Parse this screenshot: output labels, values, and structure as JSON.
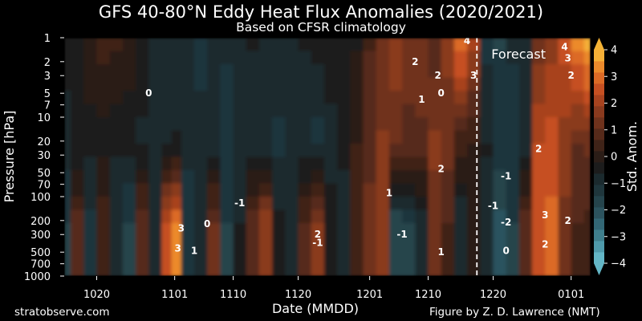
{
  "title": "GFS 40-80°N Eddy Heat Flux Anomalies (2020/2021)",
  "subtitle": "Based on CFSR climatology",
  "credit_left": "stratobserve.com",
  "credit_right": "Figure by Z. D. Lawrence (NMT)",
  "chart_data": {
    "type": "heatmap",
    "title": "GFS 40-80°N Eddy Heat Flux Anomalies (2020/2021)",
    "subtitle": "Based on CFSR climatology",
    "xlabel": "Date (MMDD)",
    "ylabel": "Pressure [hPa]",
    "x_ticks": [
      "1020",
      "1101",
      "1110",
      "1120",
      "1201",
      "1210",
      "1220",
      "0101"
    ],
    "x_tick_days": [
      0,
      12,
      21,
      31,
      42,
      51,
      61,
      73
    ],
    "x_range_days": [
      -5,
      76
    ],
    "y_ticks": [
      1,
      2,
      3,
      5,
      7,
      10,
      20,
      30,
      50,
      70,
      100,
      200,
      300,
      500,
      700,
      1000
    ],
    "y_range": [
      1,
      1000
    ],
    "y_scale": "log",
    "y_inverted": true,
    "forecast_label": "Forecast",
    "forecast_start_day": 58.5,
    "colorbar": {
      "label": "Std. Anom.",
      "ticks": [
        4,
        3,
        2,
        1,
        0,
        -1,
        -2,
        -3,
        -4
      ],
      "range": [
        -4,
        4
      ],
      "extend": "both",
      "colors": [
        "#63b6c6",
        "#4f9aab",
        "#3f7f8d",
        "#336775",
        "#2c535e",
        "#25444c",
        "#1f363c",
        "#1b2a2e",
        "#1c1c1c",
        "#2b1d17",
        "#3f2318",
        "#562a1a",
        "#6f321c",
        "#8a3a1e",
        "#a8431f",
        "#c65022",
        "#dc6a26",
        "#ec8a2c",
        "#f6b037"
      ]
    },
    "columns": [
      {
        "day": -5,
        "upper": -0.5,
        "mid": -0.8,
        "low": -1.5
      },
      {
        "day": -3,
        "upper": -0.3,
        "mid": -0.6,
        "low": 0.8
      },
      {
        "day": -1,
        "upper": 0.2,
        "mid": -0.5,
        "low": -1.2
      },
      {
        "day": 1,
        "upper": 0.4,
        "mid": -0.4,
        "low": 0.5
      },
      {
        "day": 3,
        "upper": 0.3,
        "mid": -0.6,
        "low": -0.8
      },
      {
        "day": 5,
        "upper": 0.1,
        "mid": -0.5,
        "low": -1.5
      },
      {
        "day": 7,
        "upper": -0.4,
        "mid": -0.7,
        "low": 1.0
      },
      {
        "day": 9,
        "upper": -0.8,
        "mid": -0.8,
        "low": -1.0
      },
      {
        "day": 11,
        "upper": -0.9,
        "mid": -0.7,
        "low": 2.5
      },
      {
        "day": 12,
        "upper": -0.8,
        "mid": -0.6,
        "low": 3.2
      },
      {
        "day": 14,
        "upper": -1.0,
        "mid": -0.9,
        "low": -1.3
      },
      {
        "day": 16,
        "upper": -1.1,
        "mid": -1.0,
        "low": -0.8
      },
      {
        "day": 18,
        "upper": -0.9,
        "mid": -1.0,
        "low": 1.2
      },
      {
        "day": 20,
        "upper": -1.0,
        "mid": -1.2,
        "low": -1.5
      },
      {
        "day": 22,
        "upper": -0.7,
        "mid": -1.0,
        "low": -0.6
      },
      {
        "day": 24,
        "upper": -0.6,
        "mid": -0.9,
        "low": 0.9
      },
      {
        "day": 26,
        "upper": -0.8,
        "mid": -1.0,
        "low": 1.8
      },
      {
        "day": 28,
        "upper": -0.9,
        "mid": -1.1,
        "low": -0.5
      },
      {
        "day": 30,
        "upper": -0.7,
        "mid": -0.9,
        "low": -1.0
      },
      {
        "day": 32,
        "upper": -0.6,
        "mid": -1.0,
        "low": 0.7
      },
      {
        "day": 34,
        "upper": -0.5,
        "mid": -1.2,
        "low": 1.6
      },
      {
        "day": 36,
        "upper": -0.3,
        "mid": -0.8,
        "low": -0.5
      },
      {
        "day": 38,
        "upper": -0.2,
        "mid": -0.5,
        "low": -0.9
      },
      {
        "day": 40,
        "upper": -0.3,
        "mid": 0.2,
        "low": 0.4
      },
      {
        "day": 42,
        "upper": 0.6,
        "mid": 0.9,
        "low": 1.2
      },
      {
        "day": 44,
        "upper": 1.3,
        "mid": 1.5,
        "low": 1.6
      },
      {
        "day": 46,
        "upper": 1.8,
        "mid": 1.2,
        "low": -1.8
      },
      {
        "day": 48,
        "upper": 1.5,
        "mid": 0.8,
        "low": -1.5
      },
      {
        "day": 50,
        "upper": 1.2,
        "mid": 1.0,
        "low": -1.0
      },
      {
        "day": 52,
        "upper": 0.8,
        "mid": 1.6,
        "low": 1.2
      },
      {
        "day": 54,
        "upper": 1.6,
        "mid": 1.2,
        "low": 0.6
      },
      {
        "day": 56,
        "upper": 3.2,
        "mid": 0.4,
        "low": -1.0
      },
      {
        "day": 58,
        "upper": 2.2,
        "mid": 0.1,
        "low": 0.2
      },
      {
        "day": 60,
        "upper": -1.2,
        "mid": -0.6,
        "low": -1.0
      },
      {
        "day": 62,
        "upper": -1.5,
        "mid": -1.3,
        "low": -2.0
      },
      {
        "day": 64,
        "upper": -1.0,
        "mid": -1.2,
        "low": -1.5
      },
      {
        "day": 66,
        "upper": -0.7,
        "mid": -0.8,
        "low": 0.8
      },
      {
        "day": 68,
        "upper": 1.2,
        "mid": 2.4,
        "low": 2.6
      },
      {
        "day": 70,
        "upper": 1.6,
        "mid": 2.6,
        "low": 2.8
      },
      {
        "day": 72,
        "upper": 2.6,
        "mid": 1.6,
        "low": 1.4
      },
      {
        "day": 74,
        "upper": 3.5,
        "mid": 1.0,
        "low": 0.6
      },
      {
        "day": 76,
        "upper": 4.0,
        "mid": 1.2,
        "low": 0.5
      }
    ],
    "contour_labels": [
      {
        "text": "0",
        "day": 8,
        "p": 5
      },
      {
        "text": "-1",
        "day": 22,
        "p": 120
      },
      {
        "text": "3",
        "day": 13,
        "p": 250
      },
      {
        "text": "3",
        "day": 12.5,
        "p": 450
      },
      {
        "text": "0",
        "day": 17,
        "p": 220
      },
      {
        "text": "1",
        "day": 15,
        "p": 480
      },
      {
        "text": "-1",
        "day": 34,
        "p": 380
      },
      {
        "text": "2",
        "day": 34,
        "p": 300
      },
      {
        "text": "2",
        "day": 49,
        "p": 2
      },
      {
        "text": "2",
        "day": 52.5,
        "p": 3
      },
      {
        "text": "1",
        "day": 50,
        "p": 6
      },
      {
        "text": "0",
        "day": 53,
        "p": 5
      },
      {
        "text": "4",
        "day": 57,
        "p": 1.1
      },
      {
        "text": "3",
        "day": 58,
        "p": 3
      },
      {
        "text": "2",
        "day": 53,
        "p": 45
      },
      {
        "text": "1",
        "day": 45,
        "p": 90
      },
      {
        "text": "-1",
        "day": 63,
        "p": 55
      },
      {
        "text": "-2",
        "day": 63,
        "p": 210
      },
      {
        "text": "-1",
        "day": 61,
        "p": 130
      },
      {
        "text": "2",
        "day": 68,
        "p": 25
      },
      {
        "text": "3",
        "day": 69,
        "p": 170
      },
      {
        "text": "2",
        "day": 72.5,
        "p": 200
      },
      {
        "text": "2",
        "day": 69,
        "p": 400
      },
      {
        "text": "4",
        "day": 72,
        "p": 1.3
      },
      {
        "text": "3",
        "day": 72.5,
        "p": 1.8
      },
      {
        "text": "2",
        "day": 73,
        "p": 3
      },
      {
        "text": "0",
        "day": 63,
        "p": 480
      },
      {
        "text": "-1",
        "day": 47,
        "p": 300
      },
      {
        "text": "1",
        "day": 53,
        "p": 500
      }
    ]
  }
}
